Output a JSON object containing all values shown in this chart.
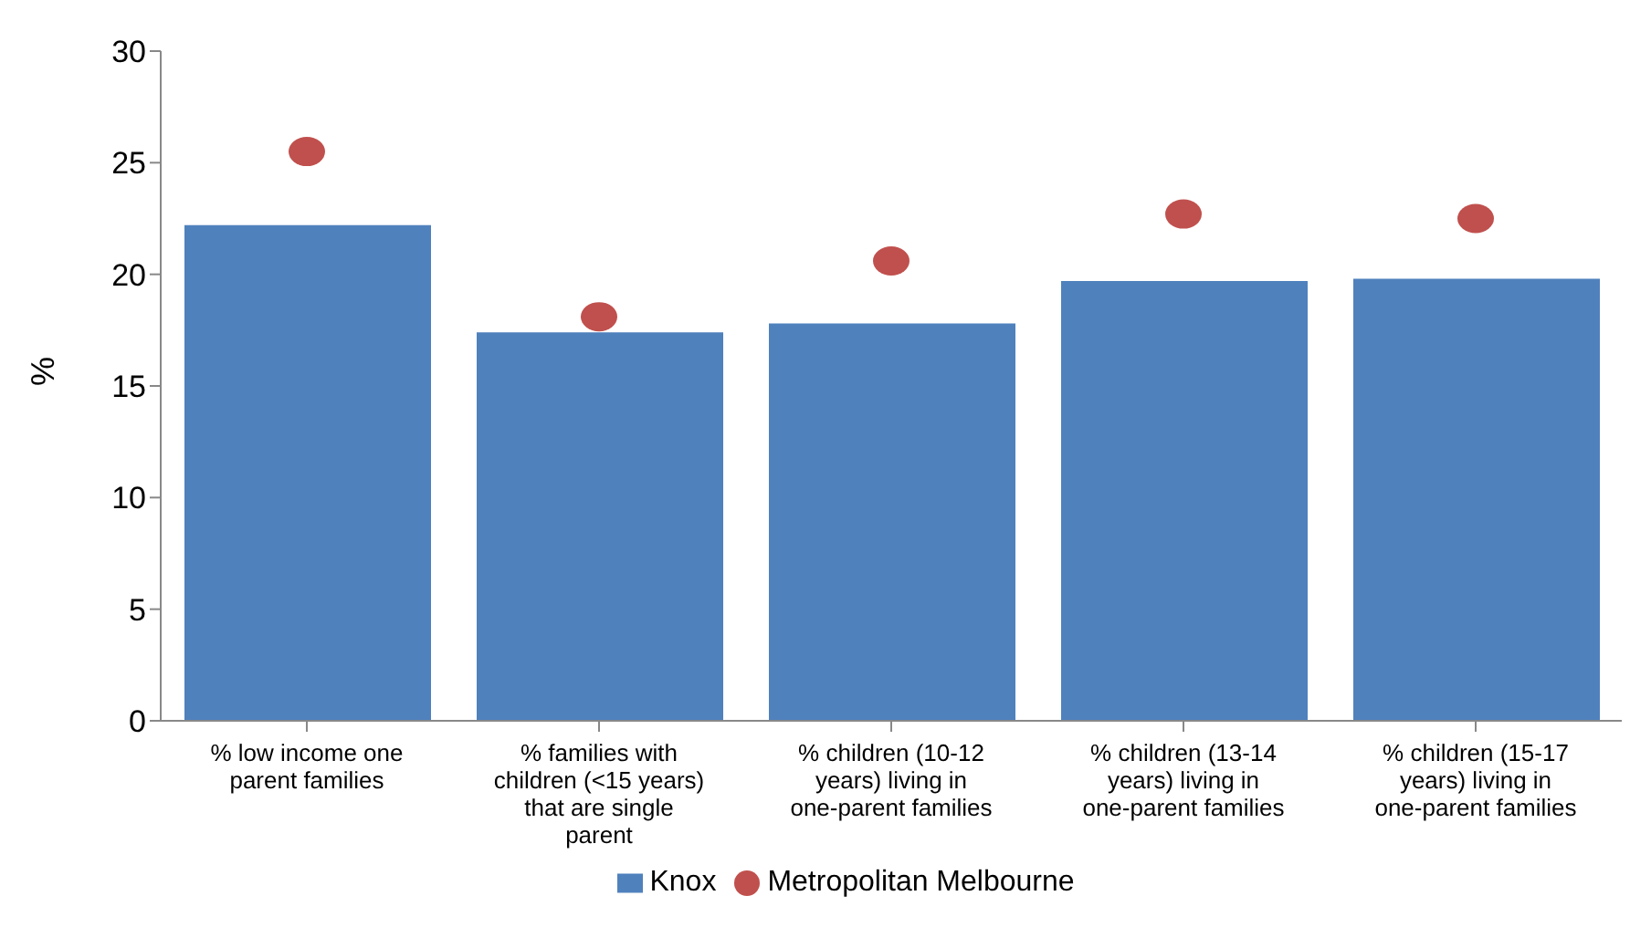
{
  "chart_data": {
    "type": "bar",
    "ylabel": "%",
    "categories": [
      "% low income one parent families",
      "% families with children (<15 years) that are single parent",
      "% children (10-12 years) living in one-parent families",
      "% children (13-14 years) living in one-parent families",
      "% children (15-17 years) living in one-parent families"
    ],
    "series": [
      {
        "name": "Knox",
        "color": "#4f81bd",
        "values": [
          22.2,
          17.4,
          17.8,
          19.7,
          19.8
        ]
      },
      {
        "name": "Metropolitan Melbourne",
        "type": "scatter",
        "color": "#c0504d",
        "values": [
          25.5,
          18.1,
          20.6,
          22.7,
          22.5
        ]
      }
    ],
    "ylim": [
      0,
      30
    ],
    "yticks": [
      0,
      5,
      10,
      15,
      20,
      25,
      30
    ],
    "grid": false,
    "legend": "bottom",
    "marker": "circle"
  }
}
